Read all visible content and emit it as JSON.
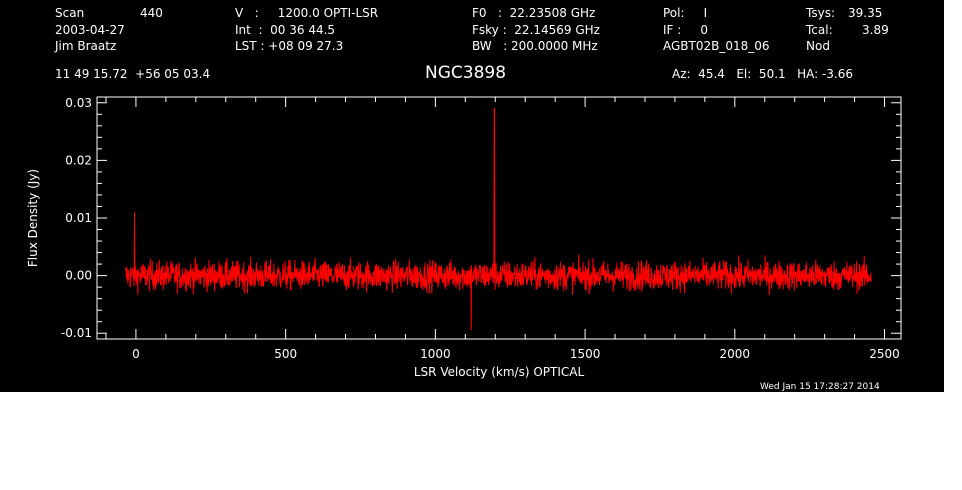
{
  "header": {
    "col1": {
      "scan_label": "Scan",
      "scan_value": "440",
      "date": "2003-04-27",
      "observer": "Jim Braatz"
    },
    "col2": {
      "v_line": "V   :     1200.0 OPTI-LSR",
      "int_line": "Int  :  00 36 44.5",
      "lst_line": "LST : +08 09 27.3"
    },
    "col3": {
      "f0_line": "F0   :  22.23508 GHz",
      "fsky_line": "Fsky :  22.14569 GHz",
      "bw_line": "BW   : 200.0000 MHz"
    },
    "col4": {
      "pol_line": "Pol:     I",
      "if_line": "IF :     0",
      "project": "AGBT02B_018_06"
    },
    "col5": {
      "tsys_label": "Tsys:",
      "tsys_value": "39.35",
      "tcal_label": "Tcal:",
      "tcal_value": "3.89",
      "mode": "Nod"
    },
    "coords": "11 49 15.72  +56 05 03.4",
    "source": "NGC3898",
    "pointing": "Az:  45.4   El:  50.1   HA: -3.66",
    "timestamp": "Wed Jan 15 17:28:27 2014"
  },
  "chart_data": {
    "type": "line",
    "xlabel": "LSR Velocity (km/s) OPTICAL",
    "ylabel": "Flux Density (Jy)",
    "xlim": [
      -130,
      2555
    ],
    "ylim": [
      -0.011,
      0.031
    ],
    "xticks": [
      0,
      500,
      1000,
      1500,
      2000,
      2500
    ],
    "xtick_labels": [
      "0",
      "500",
      "1000",
      "1500",
      "2000",
      "2500"
    ],
    "yticks": [
      -0.01,
      0.0,
      0.01,
      0.02,
      0.03
    ],
    "ytick_labels": [
      "-0.01",
      "0.00",
      "0.01",
      "0.02",
      "0.03"
    ],
    "grid": false,
    "series": [
      {
        "color": "#ff0000",
        "x_start": -35,
        "x_end": 2455,
        "baseline": 0.0,
        "noise_peak_to_peak": 0.01,
        "features": [
          {
            "x": 1197,
            "y": 0.029
          },
          {
            "x": -5,
            "y": 0.011
          },
          {
            "x": 1120,
            "y": -0.0095
          }
        ]
      }
    ]
  }
}
